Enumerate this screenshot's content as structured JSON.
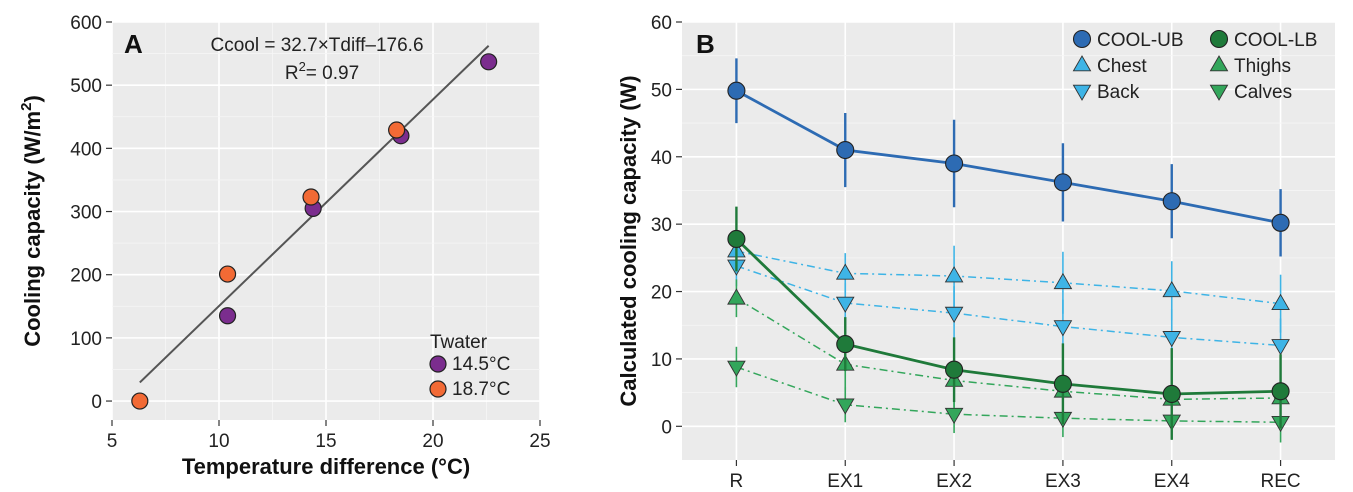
{
  "chart_data": [
    {
      "type": "scatter",
      "panel": "A",
      "xlabel": "Temperature difference (°C)",
      "ylabel": "Cooling capacity (W/m²)",
      "xlim": [
        5,
        25
      ],
      "ylim": [
        -30,
        600
      ],
      "xticks": [
        "5",
        "10",
        "15",
        "20",
        "25"
      ],
      "yticks": [
        "0",
        "100",
        "200",
        "300",
        "400",
        "500",
        "600"
      ],
      "grid": true,
      "equation": "Ccool = 32.7×Tdiff–176.6",
      "r2": "R²= 0.97",
      "legend_title": "Twater",
      "legend_position": "bottom-right",
      "fit_line": {
        "slope": 32.7,
        "intercept": -176.6,
        "x_range": [
          6.3,
          22.6
        ]
      },
      "series": [
        {
          "name": "14.5°C",
          "color": "#7b2d8e",
          "points": [
            [
              10.4,
              135
            ],
            [
              14.4,
              305
            ],
            [
              18.5,
              420
            ],
            [
              22.6,
              537
            ]
          ]
        },
        {
          "name": "18.7°C",
          "color": "#f26a35",
          "points": [
            [
              6.3,
              0
            ],
            [
              10.4,
              201
            ],
            [
              14.3,
              323
            ],
            [
              18.3,
              429
            ]
          ]
        }
      ]
    },
    {
      "type": "line",
      "panel": "B",
      "xlabel": "",
      "ylabel": "Calculated cooling capacity (W)",
      "ylim": [
        -5,
        60
      ],
      "yticks": [
        "0",
        "10",
        "20",
        "30",
        "40",
        "50",
        "60"
      ],
      "categories": [
        "R",
        "EX1",
        "EX2",
        "EX3",
        "EX4",
        "REC"
      ],
      "grid": true,
      "legend_position": "top-right",
      "series": [
        {
          "name": "COOL-UB",
          "color": "#2d6bb3",
          "marker": "circle",
          "dash": "solid",
          "values": [
            49.8,
            41.0,
            39.0,
            36.2,
            33.4,
            30.2
          ],
          "errors": [
            4.8,
            5.5,
            6.5,
            5.8,
            5.5,
            5.0
          ]
        },
        {
          "name": "Chest",
          "color": "#3eb4e6",
          "marker": "triangle-up",
          "dash": "dashdot",
          "values": [
            26.0,
            22.7,
            22.3,
            21.3,
            20.1,
            18.2
          ],
          "errors": [
            3.0,
            3.0,
            4.5,
            4.6,
            4.4,
            4.3
          ]
        },
        {
          "name": "Back",
          "color": "#3eb4e6",
          "marker": "triangle-down",
          "dash": "dashdot",
          "values": [
            23.8,
            18.3,
            16.8,
            14.8,
            13.2,
            12.0
          ],
          "errors": [
            3.0,
            3.0,
            4.0,
            4.0,
            4.2,
            4.0
          ]
        },
        {
          "name": "COOL-LB",
          "color": "#1f7a3a",
          "marker": "circle",
          "dash": "solid",
          "values": [
            27.8,
            12.2,
            8.4,
            6.3,
            4.8,
            5.2
          ],
          "errors": [
            4.8,
            4.0,
            4.8,
            6.0,
            6.8,
            5.5
          ]
        },
        {
          "name": "Thighs",
          "color": "#33a65b",
          "marker": "triangle-up",
          "dash": "dashdot",
          "values": [
            19.0,
            9.2,
            6.8,
            5.2,
            4.0,
            4.2
          ],
          "errors": [
            2.8,
            3.8,
            4.0,
            4.2,
            4.5,
            4.0
          ]
        },
        {
          "name": "Calves",
          "color": "#33a65b",
          "marker": "triangle-down",
          "dash": "dashdot",
          "values": [
            8.8,
            3.2,
            1.8,
            1.2,
            0.8,
            0.6
          ],
          "errors": [
            3.0,
            2.6,
            2.8,
            2.8,
            2.8,
            3.0
          ]
        }
      ]
    }
  ]
}
